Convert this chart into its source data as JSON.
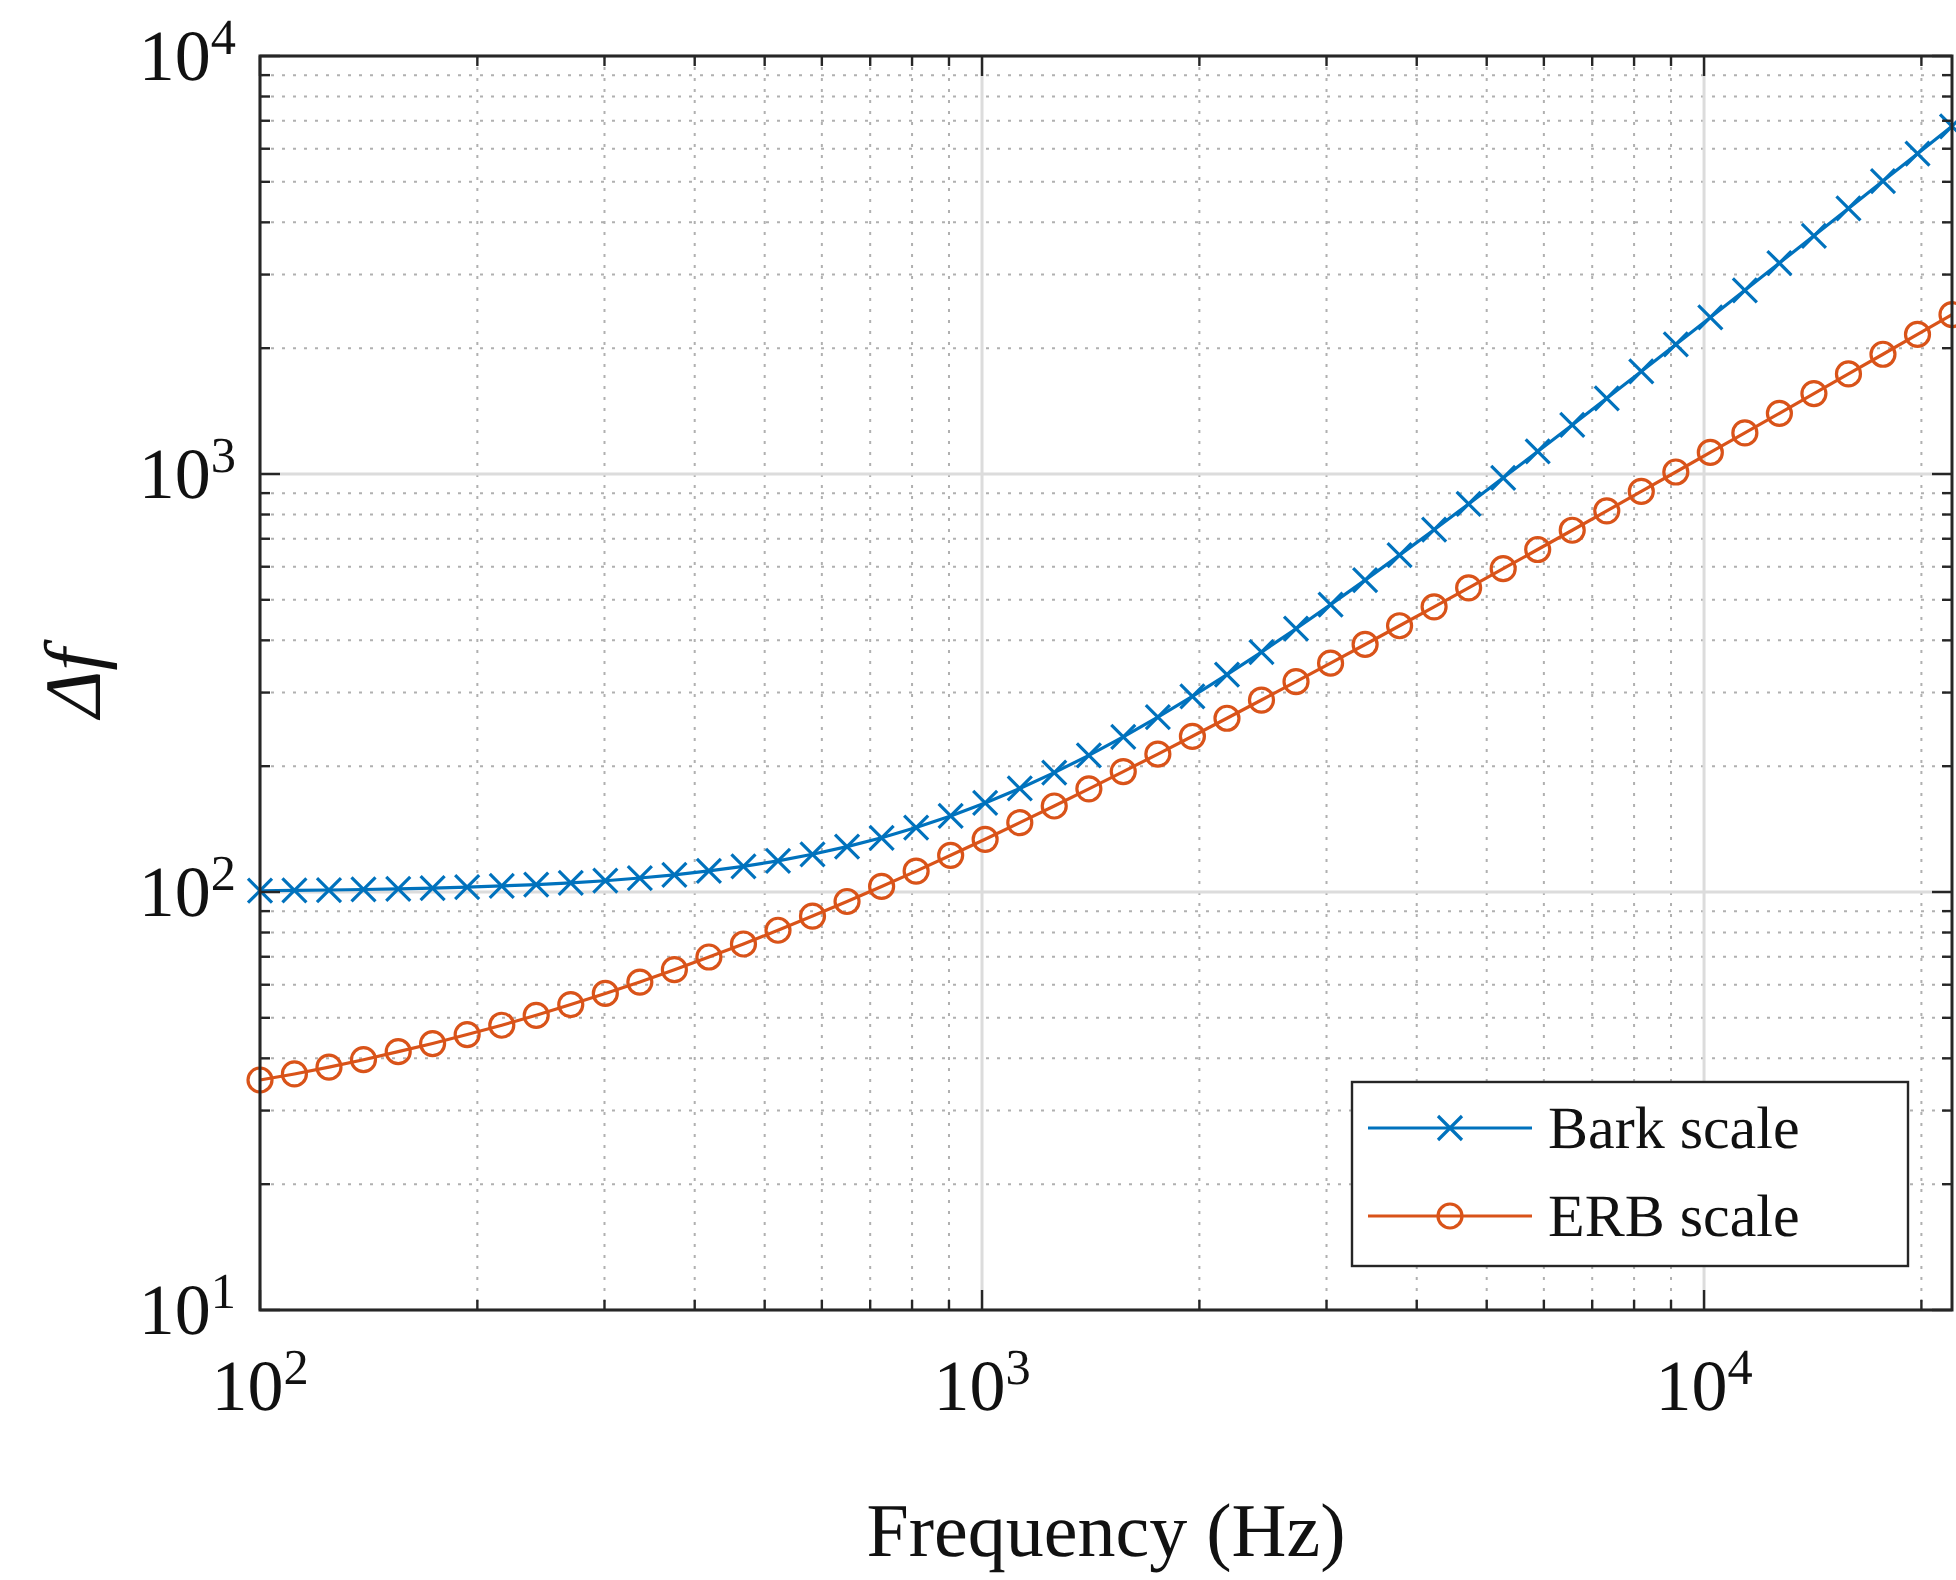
{
  "chart_data": {
    "type": "line",
    "xlabel": "Frequency (Hz)",
    "ylabel": "Δf",
    "x": [
      100,
      111.6,
      124.6,
      139.1,
      155.4,
      173.4,
      193.6,
      216.2,
      241.3,
      269.4,
      300.8,
      335.8,
      374.9,
      418.5,
      467.3,
      521.7,
      582.4,
      650.2,
      726,
      810.5,
      904.8,
      1010,
      1128,
      1259,
      1406,
      1569,
      1752,
      1956,
      2184,
      2438,
      2722,
      3039,
      3393,
      3787,
      4228,
      4720,
      5270,
      5883,
      6568,
      7333,
      8186,
      9139,
      10202,
      11390,
      12716,
      14196,
      15849,
      17693,
      19753,
      22050
    ],
    "series": [
      {
        "name": "Bark scale",
        "color": "#0072bd",
        "marker": "cross",
        "values": [
          100.7,
          100.9,
          101.1,
          101.4,
          101.7,
          102.2,
          102.7,
          103.4,
          104.2,
          105.2,
          106.4,
          108.0,
          109.9,
          112.3,
          115.2,
          118.7,
          123.1,
          128.4,
          134.8,
          142.6,
          152.0,
          163.3,
          176.9,
          193.0,
          212.3,
          235.0,
          262.0,
          293.7,
          331.1,
          375.0,
          426.4,
          486.8,
          557.2,
          639.5,
          735.8,
          847.9,
          979.2,
          1132,
          1310,
          1517,
          1759,
          2041,
          2369,
          2751,
          3197,
          3715,
          4319,
          5020,
          5838,
          6789
        ]
      },
      {
        "name": "ERB scale",
        "color": "#d95319",
        "marker": "circle",
        "values": [
          35.5,
          36.7,
          38.1,
          39.7,
          41.5,
          43.4,
          45.6,
          48.0,
          50.7,
          53.8,
          57.2,
          60.9,
          65.2,
          69.9,
          75.1,
          81.0,
          87.6,
          94.9,
          103.1,
          112.2,
          122.4,
          133.7,
          146.5,
          160.6,
          176.5,
          194.1,
          213.8,
          235.8,
          260.4,
          287.9,
          318.5,
          352.7,
          391.0,
          433.5,
          481.1,
          534.2,
          593.5,
          659.7,
          733.6,
          816.2,
          908.3,
          1011,
          1126,
          1254,
          1397,
          1557,
          1735,
          1934,
          2157,
          2405
        ]
      }
    ],
    "log": "xy",
    "xlim": [
      100,
      22050
    ],
    "ylim": [
      10,
      10000
    ],
    "xticks": [
      {
        "value": 100,
        "label": "10$^{2}$"
      },
      {
        "value": 1000,
        "label": "10$^{3}$"
      },
      {
        "value": 10000,
        "label": "10$^{4}$"
      }
    ],
    "yticks": [
      {
        "value": 10,
        "label": "10$^{1}$"
      },
      {
        "value": 100,
        "label": "10$^{2}$"
      },
      {
        "value": 1000,
        "label": "10$^{3}$"
      },
      {
        "value": 10000,
        "label": "10$^{4}$"
      }
    ],
    "grid": true,
    "legend": "bottom right",
    "line_style": "solid"
  }
}
